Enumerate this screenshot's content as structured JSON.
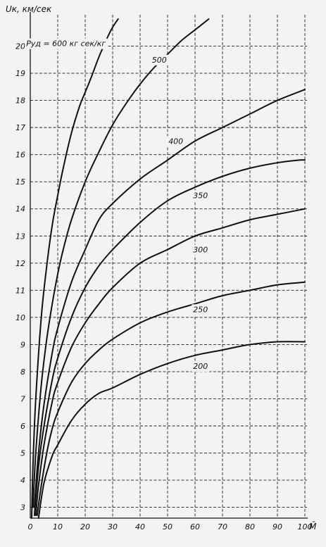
{
  "chart_data": {
    "type": "line",
    "ylabel": "Uк, км/сек",
    "xlabel": "M̄",
    "xlim": [
      0,
      100
    ],
    "ylim": [
      2.6,
      21
    ],
    "grid": true,
    "x_ticks": [
      "0",
      "10",
      "20",
      "30",
      "40",
      "50",
      "60",
      "70",
      "80",
      "90",
      "100"
    ],
    "y_ticks": [
      "3",
      "4",
      "5",
      "6",
      "7",
      "8",
      "9",
      "10",
      "11",
      "12",
      "13",
      "14",
      "15",
      "16",
      "17",
      "18",
      "19",
      "20"
    ],
    "series": [
      {
        "name": "Pуд = 600 кг сек/кг",
        "label_x": 13,
        "label_y": 20.1,
        "x": [
          0.5,
          1,
          2,
          4,
          6,
          8,
          10,
          12,
          15,
          18,
          20,
          22,
          25,
          28,
          30,
          32
        ],
        "y": [
          2.6,
          4.6,
          7.0,
          10.0,
          11.9,
          13.4,
          14.5,
          15.5,
          16.8,
          17.8,
          18.3,
          18.8,
          19.6,
          20.3,
          20.7,
          21.0
        ]
      },
      {
        "name": "500",
        "label_x": 47,
        "label_y": 19.5,
        "x": [
          1,
          2,
          4,
          6,
          8,
          10,
          12,
          15,
          20,
          25,
          30,
          35,
          40,
          45,
          50,
          55,
          60,
          65
        ],
        "y": [
          3.0,
          5.0,
          7.5,
          9.2,
          10.5,
          11.6,
          12.5,
          13.6,
          15.0,
          16.1,
          17.1,
          17.9,
          18.6,
          19.2,
          19.7,
          20.2,
          20.6,
          21.0
        ]
      },
      {
        "name": "400",
        "label_x": 53,
        "label_y": 16.5,
        "x": [
          1.5,
          3,
          5,
          8,
          10,
          15,
          20,
          25,
          30,
          40,
          50,
          60,
          70,
          80,
          90,
          100
        ],
        "y": [
          3.0,
          5.0,
          6.8,
          8.7,
          9.6,
          11.3,
          12.5,
          13.6,
          14.2,
          15.1,
          15.8,
          16.5,
          17.0,
          17.5,
          18.0,
          18.4
        ]
      },
      {
        "name": "350",
        "label_x": 62,
        "label_y": 14.5,
        "x": [
          1.5,
          3,
          5,
          8,
          10,
          15,
          20,
          25,
          30,
          40,
          50,
          60,
          70,
          80,
          90,
          98,
          100
        ],
        "y": [
          2.7,
          4.5,
          6.0,
          7.7,
          8.5,
          10.0,
          11.1,
          11.9,
          12.5,
          13.5,
          14.3,
          14.8,
          15.2,
          15.5,
          15.7,
          15.8,
          15.8
        ]
      },
      {
        "name": "300",
        "label_x": 62,
        "label_y": 12.5,
        "x": [
          2,
          3,
          5,
          8,
          10,
          15,
          20,
          25,
          30,
          40,
          50,
          60,
          70,
          80,
          90,
          100
        ],
        "y": [
          2.7,
          3.8,
          5.3,
          6.9,
          7.6,
          8.9,
          9.8,
          10.5,
          11.1,
          12.0,
          12.5,
          13.0,
          13.3,
          13.6,
          13.8,
          14.0
        ]
      },
      {
        "name": "250",
        "label_x": 62,
        "label_y": 10.3,
        "x": [
          2.5,
          4,
          6,
          8,
          10,
          15,
          20,
          25,
          30,
          40,
          50,
          60,
          70,
          80,
          90,
          100
        ],
        "y": [
          2.7,
          3.8,
          5.0,
          5.9,
          6.5,
          7.6,
          8.3,
          8.8,
          9.2,
          9.8,
          10.2,
          10.5,
          10.8,
          11.0,
          11.2,
          11.3
        ]
      },
      {
        "name": "200",
        "label_x": 62,
        "label_y": 8.2,
        "x": [
          3,
          5,
          8,
          10,
          15,
          20,
          25,
          30,
          40,
          50,
          60,
          70,
          80,
          90,
          100
        ],
        "y": [
          2.6,
          3.9,
          4.9,
          5.3,
          6.2,
          6.8,
          7.2,
          7.4,
          7.9,
          8.3,
          8.6,
          8.8,
          9.0,
          9.1,
          9.1
        ]
      }
    ]
  }
}
